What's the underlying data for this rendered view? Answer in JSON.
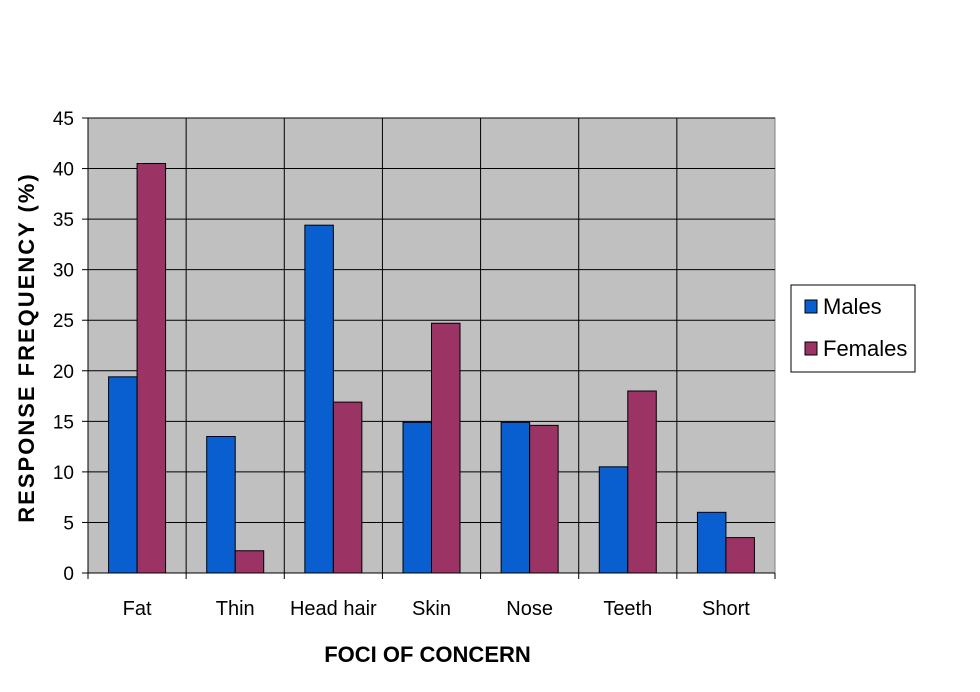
{
  "chart_data": {
    "type": "bar",
    "categories": [
      "Fat",
      "Thin",
      "Head hair",
      "Skin",
      "Nose",
      "Teeth",
      "Short"
    ],
    "series": [
      {
        "name": "Males",
        "color": "#0a5fd0",
        "values": [
          19.4,
          13.5,
          34.4,
          14.9,
          14.9,
          10.5,
          6.0
        ]
      },
      {
        "name": "Females",
        "color": "#9b3465",
        "values": [
          40.5,
          2.2,
          16.9,
          24.7,
          14.6,
          18.0,
          3.5
        ]
      }
    ],
    "xlabel": "FOCI OF CONCERN",
    "ylabel": "RESPONSE FREQUENCY (%)",
    "ylim": [
      0,
      45
    ],
    "yticks": [
      "0",
      "5",
      "10",
      "15",
      "20",
      "25",
      "30",
      "35",
      "40",
      "45"
    ],
    "grid": true,
    "plot_background": "#c0c0c0",
    "legend_position": "right"
  }
}
